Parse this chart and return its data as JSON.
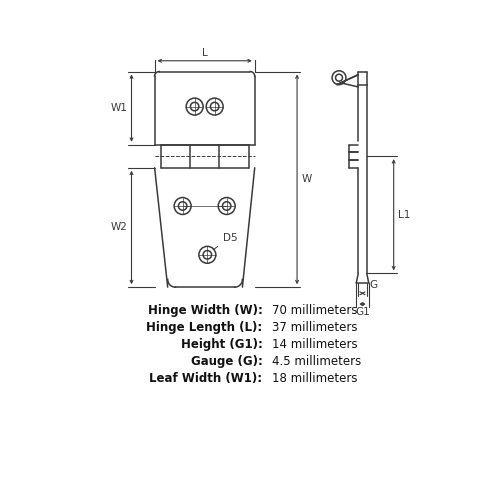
{
  "bg_color": "#ffffff",
  "line_color": "#3a3a3a",
  "specs": [
    {
      "label": "Hinge Width (W):",
      "value": "70 millimeters"
    },
    {
      "label": "Hinge Length (L):",
      "value": "37 millimeters"
    },
    {
      "label": "Height (G1):",
      "value": "14 millimeters"
    },
    {
      "label": "Gauge (G):",
      "value": "4.5 millimeters"
    },
    {
      "label": "Leaf Width (W1):",
      "value": "18 millimeters"
    }
  ],
  "font_size_label": 7.5,
  "font_size_spec_key": 8.5,
  "font_size_spec_val": 8.5
}
